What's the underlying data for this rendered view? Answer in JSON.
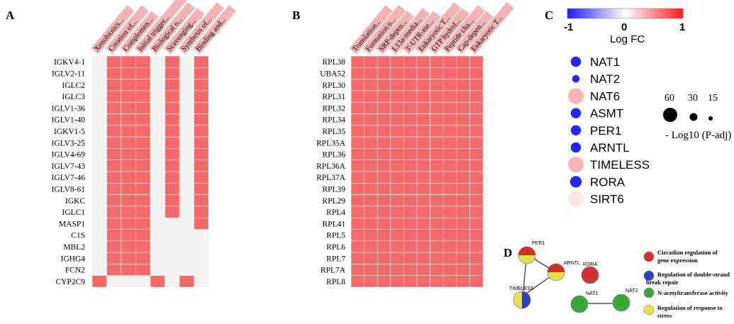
{
  "colors": {
    "on": "#f26a6a",
    "off": "#f2f2f2",
    "header_bg": "#f4b3b3",
    "neg": "#2020e0",
    "pos": "#e02020"
  },
  "chart_data": [
    {
      "panel": "A",
      "type": "heatmap",
      "columns": [
        "Xenobiotics...",
        "Creation of...",
        "Complemen...",
        "Initial trigger...",
        "Biological o...",
        "Scavenging...",
        "Synthesis of...",
        "Binding and..."
      ],
      "rows": [
        "IGKV4-1",
        "IGLV2-11",
        "IGLC2",
        "IGLC3",
        "IGLV1-36",
        "IGLV1-40",
        "IGKV1-5",
        "IGLV3-25",
        "IGLV4-69",
        "IGLV7-43",
        "IGLV7-46",
        "IGLV8-61",
        "IGKC",
        "IGLC1",
        "MASP1",
        "C1S",
        "MBL2",
        "IGHG4",
        "FCN2",
        "CYP2C9"
      ],
      "matrix": [
        [
          0,
          1,
          1,
          1,
          0,
          1,
          0,
          1
        ],
        [
          0,
          1,
          1,
          1,
          0,
          1,
          0,
          1
        ],
        [
          0,
          1,
          1,
          1,
          0,
          1,
          0,
          1
        ],
        [
          0,
          1,
          1,
          1,
          0,
          1,
          0,
          1
        ],
        [
          0,
          1,
          1,
          1,
          0,
          1,
          0,
          1
        ],
        [
          0,
          1,
          1,
          1,
          0,
          1,
          0,
          1
        ],
        [
          0,
          1,
          1,
          1,
          0,
          1,
          0,
          1
        ],
        [
          0,
          1,
          1,
          1,
          0,
          1,
          0,
          1
        ],
        [
          0,
          1,
          1,
          1,
          0,
          1,
          0,
          1
        ],
        [
          0,
          1,
          1,
          1,
          0,
          1,
          0,
          1
        ],
        [
          0,
          1,
          1,
          1,
          0,
          1,
          0,
          1
        ],
        [
          0,
          1,
          1,
          1,
          0,
          1,
          0,
          1
        ],
        [
          0,
          1,
          1,
          1,
          0,
          1,
          0,
          1
        ],
        [
          0,
          1,
          1,
          1,
          0,
          1,
          0,
          1
        ],
        [
          0,
          1,
          1,
          1,
          0,
          0,
          0,
          1
        ],
        [
          0,
          1,
          1,
          1,
          0,
          0,
          0,
          0
        ],
        [
          0,
          1,
          1,
          1,
          0,
          0,
          0,
          0
        ],
        [
          0,
          1,
          1,
          1,
          0,
          0,
          0,
          0
        ],
        [
          0,
          1,
          1,
          1,
          0,
          0,
          0,
          0
        ],
        [
          1,
          0,
          0,
          0,
          1,
          0,
          1,
          0
        ]
      ]
    },
    {
      "panel": "B",
      "type": "heatmap",
      "columns": [
        "Translation...",
        "Formation o...",
        "SRP-depen...",
        "L13a-media...",
        "3'-UTR-me...",
        "Eukaryotic T...",
        "GTP hydrol...",
        "Peptide cha...",
        "Cap-depen...",
        "Eukaryotic T..."
      ],
      "rows": [
        "RPL38",
        "UBA52",
        "RPL30",
        "RPL31",
        "RPL32",
        "RPL34",
        "RPL35",
        "RPL35A",
        "RPL36",
        "RPL36A",
        "RPL37A",
        "RPL39",
        "RPL29",
        "RPL4",
        "RPL41",
        "RPL5",
        "RPL6",
        "RPL7",
        "RPL7A",
        "RPL8"
      ],
      "all_on": true
    },
    {
      "panel": "C",
      "type": "scatter",
      "colorbar": {
        "min_label": "-1",
        "mid_label": "0",
        "max_label": "1",
        "label": "Log FC",
        "range": [
          -1,
          1
        ]
      },
      "size_legend": {
        "values": [
          "60",
          "30",
          "15"
        ],
        "label": "- Log10 (P-adj)"
      },
      "genes": [
        {
          "name": "NAT1",
          "logfc": -0.95,
          "neglog10p": 20
        },
        {
          "name": "NAT2",
          "logfc": -0.95,
          "neglog10p": 8
        },
        {
          "name": "NAT6",
          "logfc": 0.35,
          "neglog10p": 60
        },
        {
          "name": "ASMT",
          "logfc": -0.95,
          "neglog10p": 20
        },
        {
          "name": "PER1",
          "logfc": -0.95,
          "neglog10p": 20
        },
        {
          "name": "ARNTL",
          "logfc": -0.95,
          "neglog10p": 20
        },
        {
          "name": "TIMELESS",
          "logfc": 0.35,
          "neglog10p": 60
        },
        {
          "name": "RORA",
          "logfc": -0.95,
          "neglog10p": 28
        },
        {
          "name": "SIRT6",
          "logfc": 0.12,
          "neglog10p": 60
        }
      ]
    },
    {
      "panel": "D",
      "type": "network",
      "nodes": [
        {
          "name": "PER1",
          "colors": [
            "#d03030",
            "#e8e04a"
          ]
        },
        {
          "name": "ARNTL",
          "colors": [
            "#d03030",
            "#e8e04a"
          ]
        },
        {
          "name": "RORA",
          "colors": [
            "#d03030"
          ]
        },
        {
          "name": "TIMELESS",
          "colors": [
            "#e8e04a",
            "#3040c0"
          ]
        },
        {
          "name": "NAT1",
          "colors": [
            "#3aa83a"
          ]
        },
        {
          "name": "NAT2",
          "colors": [
            "#3aa83a"
          ]
        }
      ],
      "edges": [
        [
          "PER1",
          "ARNTL"
        ],
        [
          "PER1",
          "TIMELESS"
        ],
        [
          "ARNTL",
          "TIMELESS"
        ],
        [
          "NAT1",
          "NAT2"
        ]
      ],
      "legend": [
        {
          "label": "Circadian regulation of gene expression",
          "color": "#d03030"
        },
        {
          "label": "Regulation of double-strand break repair",
          "color": "#3040c0"
        },
        {
          "label": "N-acetyltransferase activity",
          "color": "#3aa83a"
        },
        {
          "label": "Regulation of response to stress",
          "color": "#e8e04a"
        }
      ]
    }
  ]
}
